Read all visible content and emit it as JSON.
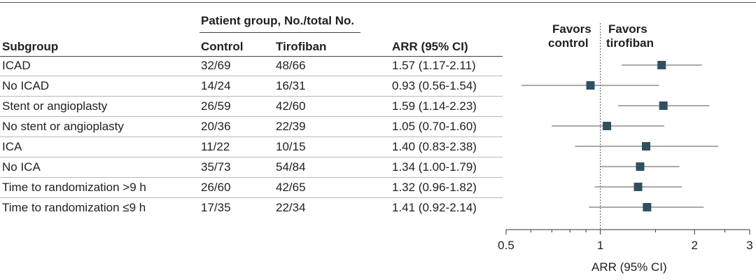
{
  "table": {
    "header_group": "Patient group, No./total No.",
    "col_subgroup": "Subgroup",
    "col_control": "Control",
    "col_tirofiban": "Tirofiban",
    "col_arr": "ARR (95% CI)",
    "rows": [
      {
        "subgroup": "ICAD",
        "control": "32/69",
        "tirofiban": "48/66",
        "arr": "1.57 (1.17-2.11)"
      },
      {
        "subgroup": "No ICAD",
        "control": "14/24",
        "tirofiban": "16/31",
        "arr": "0.93 (0.56-1.54)"
      },
      {
        "subgroup": "Stent or angioplasty",
        "control": "26/59",
        "tirofiban": "42/60",
        "arr": "1.59 (1.14-2.23)"
      },
      {
        "subgroup": "No stent or angioplasty",
        "control": "20/36",
        "tirofiban": "22/39",
        "arr": "1.05 (0.70-1.60)"
      },
      {
        "subgroup": "ICA",
        "control": "11/22",
        "tirofiban": "10/15",
        "arr": "1.40 (0.83-2.38)"
      },
      {
        "subgroup": "No ICA",
        "control": "35/73",
        "tirofiban": "54/84",
        "arr": "1.34 (1.00-1.79)"
      },
      {
        "subgroup": "Time to randomization >9 h",
        "control": "26/60",
        "tirofiban": "42/65",
        "arr": "1.32 (0.96-1.82)"
      },
      {
        "subgroup": "Time to randomization ≤9 h",
        "control": "17/35",
        "tirofiban": "22/34",
        "arr": "1.41 (0.92-2.14)"
      }
    ]
  },
  "chart_data": {
    "type": "forest",
    "xlabel": "ARR (95% CI)",
    "x_scale": "log",
    "xlim": [
      0.5,
      3
    ],
    "xticks": [
      0.5,
      1,
      2,
      3
    ],
    "xtick_labels": [
      "0.5",
      "1",
      "2",
      "3"
    ],
    "reference_line": 1,
    "favors_left": {
      "line1": "Favors",
      "line2": "control"
    },
    "favors_right": {
      "line1": "Favors",
      "line2": "tirofiban"
    },
    "points": [
      {
        "label": "ICAD",
        "estimate": 1.57,
        "lower": 1.17,
        "upper": 2.11
      },
      {
        "label": "No ICAD",
        "estimate": 0.93,
        "lower": 0.56,
        "upper": 1.54
      },
      {
        "label": "Stent or angioplasty",
        "estimate": 1.59,
        "lower": 1.14,
        "upper": 2.23
      },
      {
        "label": "No stent or angioplasty",
        "estimate": 1.05,
        "lower": 0.7,
        "upper": 1.6
      },
      {
        "label": "ICA",
        "estimate": 1.4,
        "lower": 0.83,
        "upper": 2.38
      },
      {
        "label": "No ICA",
        "estimate": 1.34,
        "lower": 1.0,
        "upper": 1.79
      },
      {
        "label": "Time to randomization >9 h",
        "estimate": 1.32,
        "lower": 0.96,
        "upper": 1.82
      },
      {
        "label": "Time to randomization ≤9 h",
        "estimate": 1.41,
        "lower": 0.92,
        "upper": 2.14
      }
    ],
    "marker_color": "#2e5060",
    "line_color": "#555555"
  }
}
